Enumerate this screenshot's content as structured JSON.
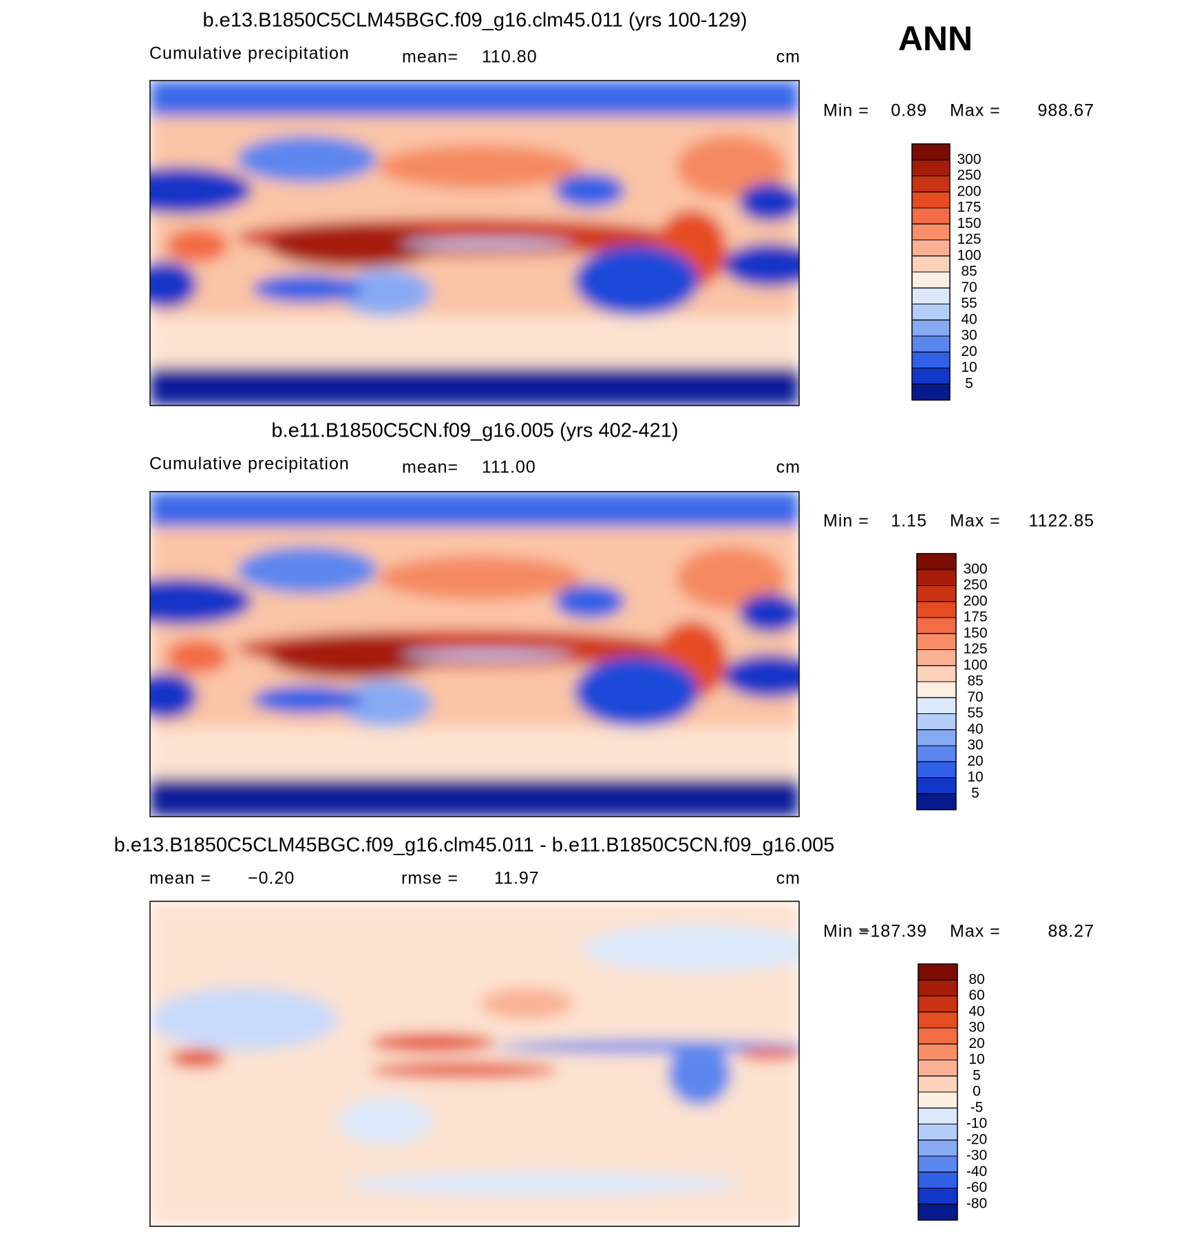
{
  "header": {
    "title": "ANN"
  },
  "panels": [
    {
      "title": "b.e13.B1850C5CLM45BGC.f09_g16.clm45.011 (yrs 100-129)",
      "variable": "Cumulative precipitation",
      "mean_label": "mean=",
      "mean": "110.80",
      "units": "cm",
      "min_label": "Min =",
      "min": "0.89",
      "max_label": "Max =",
      "max": "988.67",
      "colorbar": {
        "levels": [
          300,
          250,
          200,
          175,
          150,
          125,
          100,
          85,
          70,
          55,
          40,
          30,
          20,
          10,
          5
        ],
        "colors": [
          "#7a0c02",
          "#a51d08",
          "#c93212",
          "#e54c22",
          "#f26c45",
          "#f78e67",
          "#fab193",
          "#fdd2bb",
          "#fdeee2",
          "#dbe9fb",
          "#b3cdf8",
          "#87aaf3",
          "#5b86ee",
          "#3060e6",
          "#1236c8",
          "#061a8e"
        ]
      }
    },
    {
      "title": "b.e11.B1850C5CN.f09_g16.005 (yrs 402-421)",
      "variable": "Cumulative precipitation",
      "mean_label": "mean=",
      "mean": "111.00",
      "units": "cm",
      "min_label": "Min =",
      "min": "1.15",
      "max_label": "Max =",
      "max": "1122.85",
      "colorbar": {
        "levels": [
          300,
          250,
          200,
          175,
          150,
          125,
          100,
          85,
          70,
          55,
          40,
          30,
          20,
          10,
          5
        ],
        "colors": [
          "#7a0c02",
          "#a51d08",
          "#c93212",
          "#e54c22",
          "#f26c45",
          "#f78e67",
          "#fab193",
          "#fdd2bb",
          "#fdeee2",
          "#dbe9fb",
          "#b3cdf8",
          "#87aaf3",
          "#5b86ee",
          "#3060e6",
          "#1236c8",
          "#061a8e"
        ]
      }
    },
    {
      "title": "b.e13.B1850C5CLM45BGC.f09_g16.clm45.011 - b.e11.B1850C5CN.f09_g16.005",
      "mean_label": "mean =",
      "mean": "−0.20",
      "rmse_label": "rmse =",
      "rmse": "11.97",
      "units": "cm",
      "min_label": "Min =",
      "min": "−187.39",
      "max_label": "Max =",
      "max": "88.27",
      "colorbar": {
        "levels": [
          80,
          60,
          40,
          30,
          20,
          10,
          5,
          0,
          -5,
          -10,
          -20,
          -30,
          -40,
          -60,
          -80
        ],
        "colors": [
          "#7a0c02",
          "#a51d08",
          "#c93212",
          "#e54c22",
          "#f26c45",
          "#f78e67",
          "#fab193",
          "#fdd2bb",
          "#fdeee2",
          "#dbe9fb",
          "#b3cdf8",
          "#87aaf3",
          "#5b86ee",
          "#3060e6",
          "#1236c8",
          "#061a8e"
        ]
      }
    }
  ]
}
